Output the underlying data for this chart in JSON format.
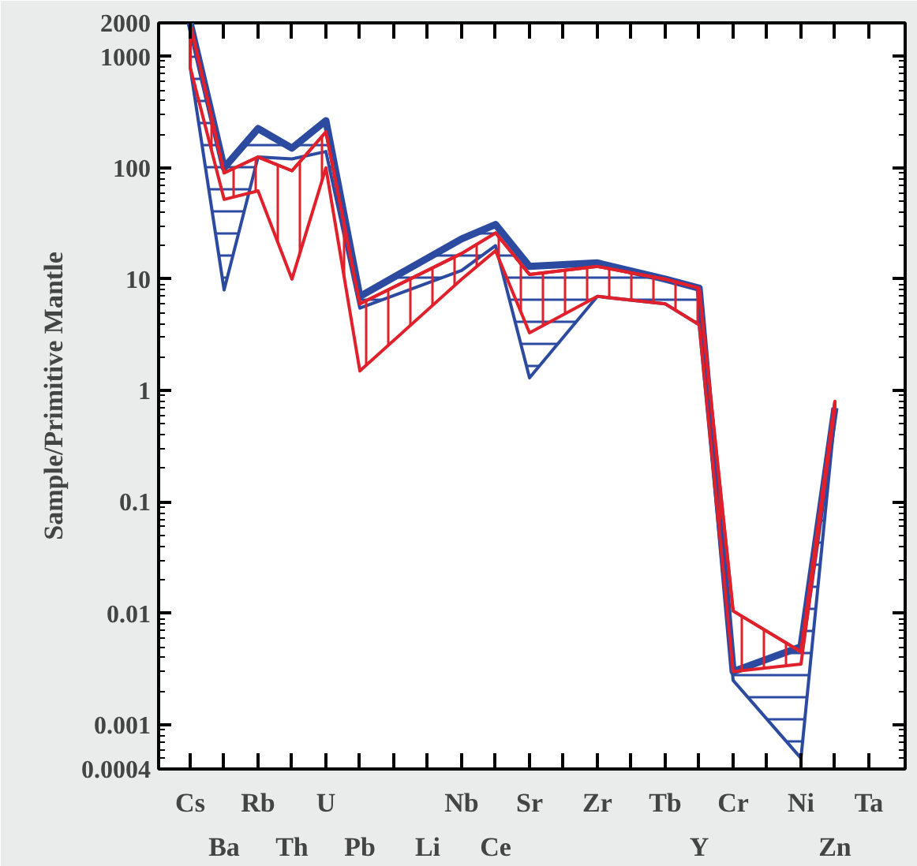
{
  "chart_data": {
    "type": "line",
    "ylabel": "Sample/Primitive Mantle",
    "log": true,
    "categories": [
      "Cs",
      "Ba",
      "Rb",
      "Th",
      "U",
      "Pb",
      null,
      "Li",
      "Nb",
      "Ce",
      "Sr",
      null,
      "Zr",
      null,
      "Tb",
      "Y",
      "Cr",
      null,
      "Ni",
      "Zn",
      "Ta"
    ],
    "series": [
      {
        "color": "#2b4aa0",
        "values": [
          2000,
          100,
          225,
          150,
          265,
          7,
          null,
          null,
          23,
          31,
          13,
          null,
          14,
          null,
          10,
          8.3,
          0.003,
          null,
          0.005,
          0.7,
          null
        ],
        "upper": [
          2000,
          100,
          225,
          150,
          265,
          7,
          null,
          null,
          23,
          31,
          13,
          null,
          14,
          null,
          10,
          8.3,
          0.003,
          null,
          0.005,
          0.7,
          null
        ],
        "lower": [
          800,
          8,
          125,
          120,
          140,
          5.5,
          null,
          null,
          12,
          20,
          1.3,
          null,
          7,
          null,
          6,
          3.9,
          0.0025,
          null,
          0.0005,
          0.6,
          null
        ]
      },
      {
        "color": "#e0202a",
        "values": [
          2000,
          90,
          125,
          94,
          210,
          6,
          null,
          null,
          17,
          26,
          11,
          null,
          13,
          null,
          10,
          8.3,
          0.0105,
          null,
          0.0045,
          0.8,
          null
        ],
        "upper": [
          2000,
          90,
          125,
          94,
          210,
          6,
          null,
          null,
          17,
          26,
          11,
          null,
          13,
          null,
          10,
          8.3,
          0.0105,
          null,
          0.0045,
          0.8,
          null
        ],
        "lower": [
          800,
          52,
          62,
          10,
          100,
          1.5,
          null,
          null,
          10,
          18,
          3.3,
          null,
          7,
          null,
          6,
          3.9,
          0.003,
          null,
          0.0035,
          0.7,
          null
        ]
      }
    ],
    "ylim": [
      0.0004,
      2000
    ],
    "yticks": [
      0.0004,
      0.001,
      0.01,
      0.1,
      1,
      10,
      100,
      1000,
      2000
    ],
    "grid": false
  }
}
